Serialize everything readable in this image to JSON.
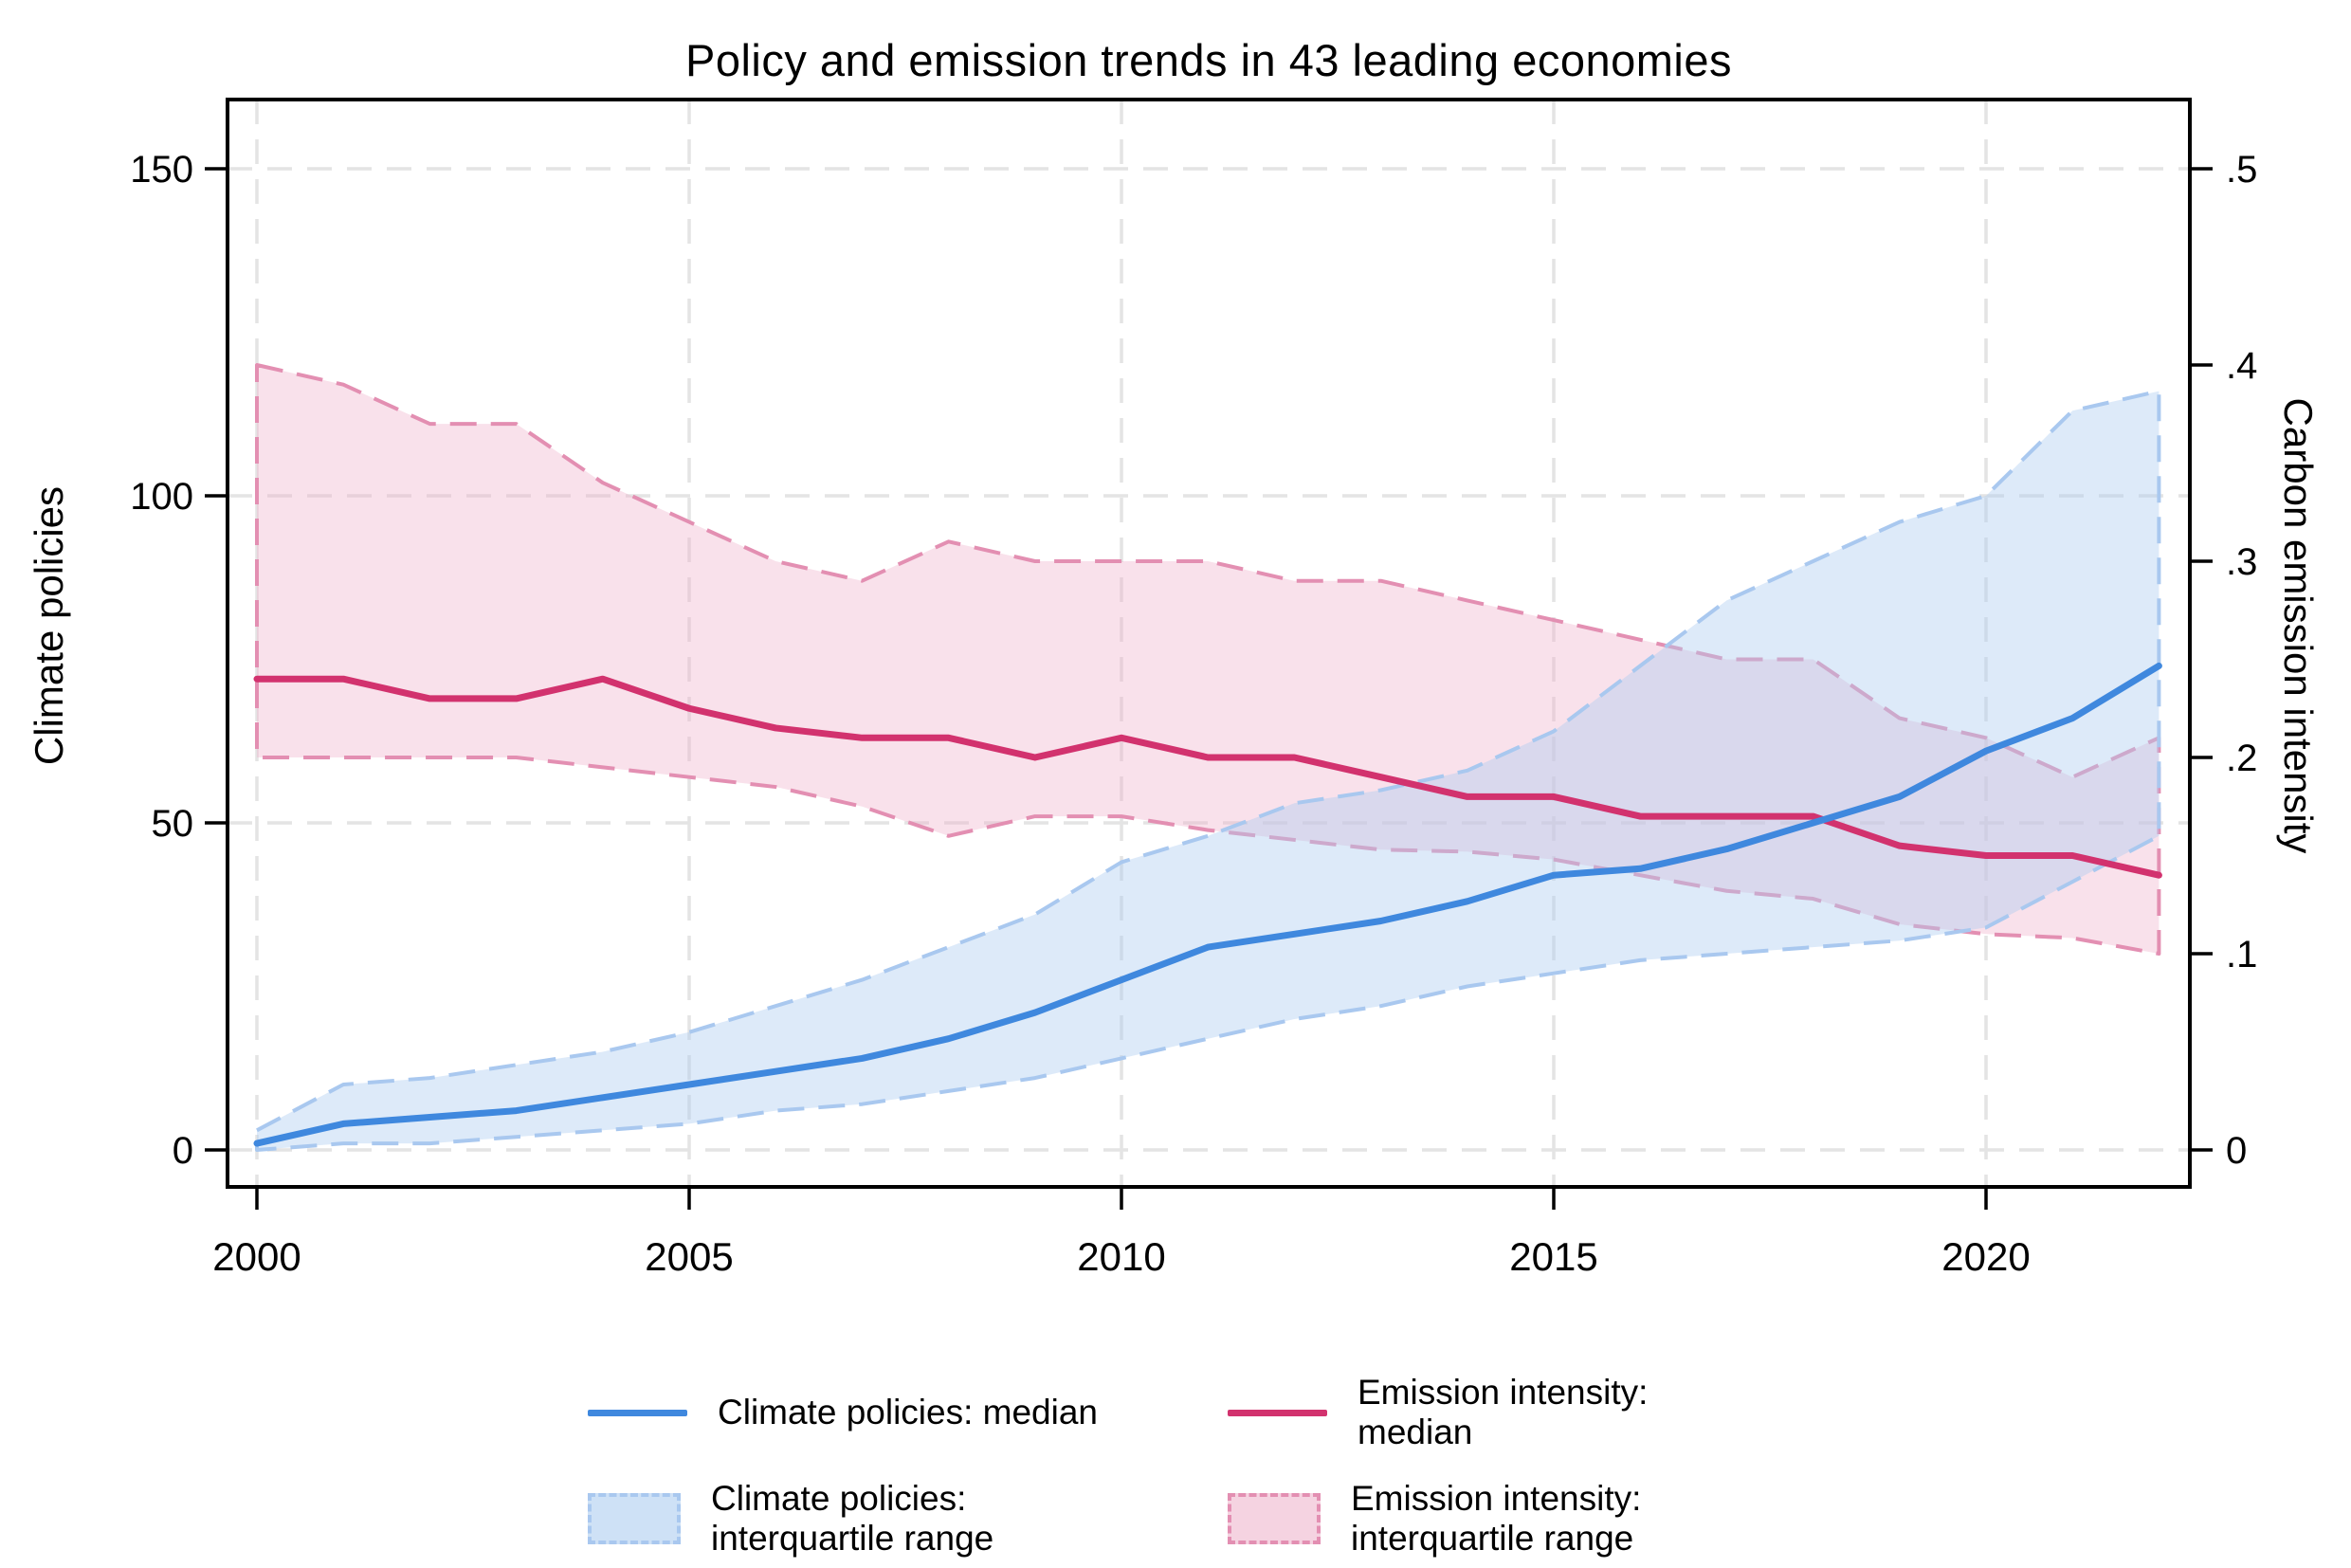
{
  "chart_data": {
    "type": "line",
    "title": "Policy and emission trends in 43 leading economies",
    "x": [
      2000,
      2001,
      2002,
      2003,
      2004,
      2005,
      2006,
      2007,
      2008,
      2009,
      2010,
      2011,
      2012,
      2013,
      2014,
      2015,
      2016,
      2017,
      2018,
      2019,
      2020,
      2021,
      2022
    ],
    "x_ticks": [
      2000,
      2005,
      2010,
      2015,
      2020
    ],
    "x_tick_labels": [
      "2000",
      "2005",
      "2010",
      "2015",
      "2020"
    ],
    "left_axis": {
      "label": "Climate policies",
      "ticks": [
        0,
        50,
        100,
        150
      ],
      "tick_labels": [
        "0",
        "50",
        "100",
        "150"
      ],
      "lim": [
        0,
        155
      ]
    },
    "right_axis": {
      "label": "Carbon emission intensity",
      "ticks": [
        0,
        0.1,
        0.2,
        0.3,
        0.4,
        0.5
      ],
      "tick_labels": [
        "0",
        ".1",
        ".2",
        ".3",
        ".4",
        ".5"
      ],
      "lim": [
        0,
        0.517
      ]
    },
    "grid": true,
    "series": [
      {
        "name": "Climate policies: median",
        "axis": "left",
        "kind": "line",
        "color": "#3f88de",
        "values": [
          1,
          4,
          5,
          6,
          8,
          10,
          12,
          14,
          17,
          21,
          26,
          31,
          33,
          35,
          38,
          42,
          43,
          46,
          50,
          54,
          61,
          66,
          74
        ]
      },
      {
        "name": "Climate policies: interquartile range",
        "axis": "left",
        "kind": "band",
        "edge_color": "#a9c8ef",
        "fill_color": "#aecdf0",
        "fill_opacity": 0.42,
        "upper": [
          3,
          10,
          11,
          13,
          15,
          18,
          22,
          26,
          31,
          36,
          44,
          48,
          53,
          55,
          58,
          64,
          74,
          84,
          90,
          96,
          100,
          113,
          116
        ],
        "lower": [
          0,
          1,
          1,
          2,
          3,
          4,
          6,
          7,
          9,
          11,
          14,
          17,
          20,
          22,
          25,
          27,
          29,
          30,
          31,
          32,
          34,
          41,
          48
        ]
      },
      {
        "name": "Emission intensity: median",
        "axis": "right",
        "kind": "line",
        "color": "#d2326e",
        "values": [
          0.24,
          0.24,
          0.23,
          0.23,
          0.24,
          0.225,
          0.215,
          0.21,
          0.21,
          0.2,
          0.21,
          0.2,
          0.2,
          0.19,
          0.18,
          0.18,
          0.17,
          0.17,
          0.17,
          0.155,
          0.15,
          0.15,
          0.14
        ]
      },
      {
        "name": "Emission intensity: interquartile range",
        "axis": "right",
        "kind": "band",
        "edge_color": "#e38fb2",
        "fill_color": "#eeb0ca",
        "fill_opacity": 0.38,
        "upper": [
          0.4,
          0.39,
          0.37,
          0.37,
          0.34,
          0.32,
          0.3,
          0.29,
          0.31,
          0.3,
          0.3,
          0.3,
          0.29,
          0.29,
          0.28,
          0.27,
          0.26,
          0.25,
          0.25,
          0.22,
          0.21,
          0.19,
          0.21
        ],
        "lower": [
          0.2,
          0.2,
          0.2,
          0.2,
          0.195,
          0.19,
          0.185,
          0.175,
          0.16,
          0.17,
          0.17,
          0.163,
          0.158,
          0.153,
          0.152,
          0.148,
          0.14,
          0.132,
          0.128,
          0.115,
          0.11,
          0.108,
          0.1
        ]
      }
    ],
    "legend": {
      "position": "bottom",
      "entries": [
        {
          "label": "Climate policies: median",
          "swatch": "line",
          "color": "#3f88de"
        },
        {
          "label": "Emission intensity: median",
          "swatch": "line",
          "color": "#d2326e"
        },
        {
          "label": "Climate policies: interquartile range",
          "swatch": "band",
          "edge_color": "#a9c8ef",
          "fill_color": "#aecdf0",
          "fill_opacity": 0.42
        },
        {
          "label": "Emission intensity: interquartile range",
          "swatch": "band",
          "edge_color": "#e38fb2",
          "fill_color": "#eeb0ca",
          "fill_opacity": 0.38
        }
      ]
    },
    "style": {
      "grid_color": "#e4e4e4",
      "frame_color": "#000000",
      "background": "#ffffff"
    }
  }
}
